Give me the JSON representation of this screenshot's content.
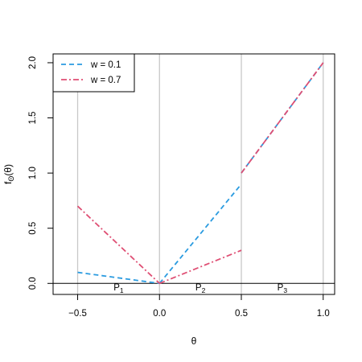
{
  "chart_data": {
    "type": "line",
    "xlabel": "θ",
    "ylabel": {
      "main": "f",
      "sub": "Θ",
      "tail": "(θ)"
    },
    "xlim": [
      -0.65,
      1.07
    ],
    "ylim": [
      -0.1,
      2.08
    ],
    "x_ticks": [
      -0.5,
      0.0,
      0.5,
      1.0
    ],
    "x_tick_labels": [
      "−0.5",
      "0.0",
      "0.5",
      "1.0"
    ],
    "y_ticks": [
      0.0,
      0.5,
      1.0,
      1.5,
      2.0
    ],
    "y_tick_labels": [
      "0.0",
      "0.5",
      "1.0",
      "1.5",
      "2.0"
    ],
    "vertical_gridlines_at": [
      -0.5,
      0.0,
      0.5,
      1.0
    ],
    "horizontal_line_at": 0.0,
    "regions": [
      {
        "base": "P",
        "sub": "1",
        "x": -0.25
      },
      {
        "base": "P",
        "sub": "2",
        "x": 0.25
      },
      {
        "base": "P",
        "sub": "3",
        "x": 0.75
      }
    ],
    "legend_position": "top-left",
    "series": [
      {
        "name": "w = 0.1",
        "color": "#2a9be0",
        "linestyle": "dashed",
        "segments": [
          [
            [
              -0.5,
              0.1
            ],
            [
              0.0,
              0.0
            ]
          ],
          [
            [
              0.0,
              0.0
            ],
            [
              0.5,
              0.9
            ]
          ],
          [
            [
              0.5,
              1.0
            ],
            [
              1.0,
              2.0
            ]
          ]
        ]
      },
      {
        "name": "w = 0.7",
        "color": "#df4f74",
        "linestyle": "dashdot",
        "segments": [
          [
            [
              -0.5,
              0.7
            ],
            [
              0.0,
              0.0
            ]
          ],
          [
            [
              0.0,
              0.0
            ],
            [
              0.5,
              0.3
            ]
          ],
          [
            [
              0.5,
              1.0
            ],
            [
              1.0,
              2.0
            ]
          ]
        ]
      }
    ]
  }
}
